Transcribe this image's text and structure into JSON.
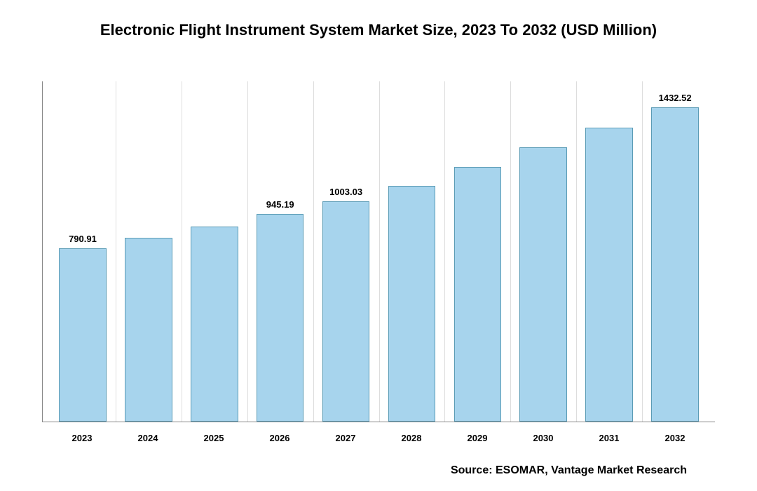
{
  "chart": {
    "type": "bar",
    "title": "Electronic Flight Instrument System Market Size, 2023 To 2032 (USD Million)",
    "title_fontsize": 22,
    "title_color": "#000000",
    "categories": [
      "2023",
      "2024",
      "2025",
      "2026",
      "2027",
      "2028",
      "2029",
      "2030",
      "2031",
      "2032"
    ],
    "values": [
      790.91,
      838,
      890,
      945.19,
      1003.03,
      1075,
      1160,
      1250,
      1340,
      1432.52
    ],
    "visible_value_labels": {
      "0": "790.91",
      "3": "945.19",
      "4": "1003.03",
      "9": "1432.52"
    },
    "bar_color": "#a7d4ed",
    "bar_border_color": "#5a9bb5",
    "bar_width_ratio": 0.72,
    "ylim": [
      0,
      1550
    ],
    "background_color": "#ffffff",
    "grid_color": "#dddddd",
    "axis_color": "#888888",
    "label_fontsize": 13,
    "label_fontweight": "700",
    "value_label_fontsize": 13,
    "source": "Source: ESOMAR, Vantage Market Research",
    "source_fontsize": 16
  }
}
